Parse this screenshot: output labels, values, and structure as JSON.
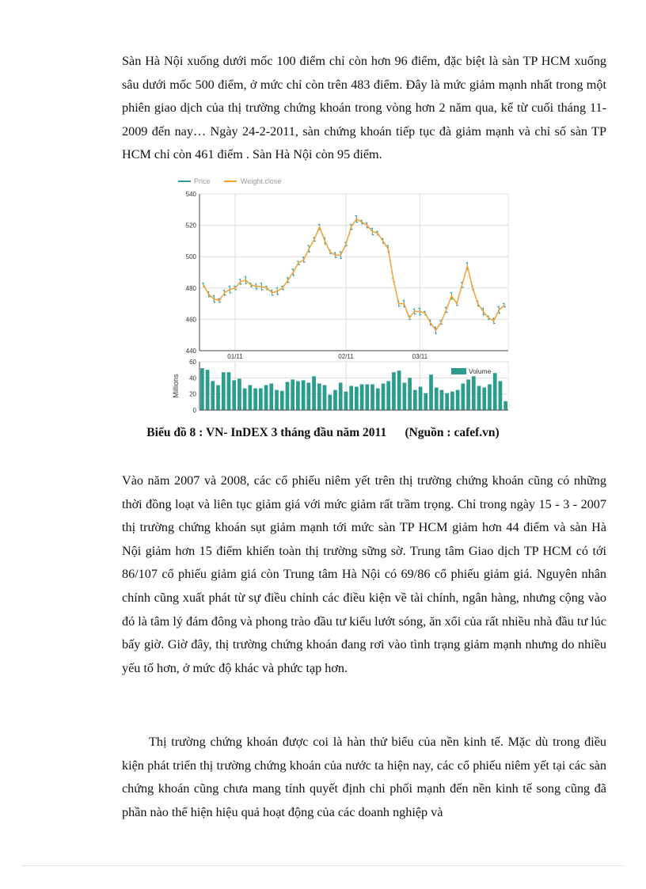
{
  "paragraphs": [
    "Sàn Hà Nội xuống dưới mốc 100 điểm chỉ còn hơn 96 điểm, đặc biệt là sàn TP HCM xuống sâu dưới mốc 500 điểm, ở mức chỉ còn trên 483 điểm. Đây là mức giảm mạnh nhất trong một phiên giao dịch của thị trường chứng khoán trong vòng hơn 2 năm qua, kể từ cuối tháng 11-2009 đến nay… Ngày 24-2-2011, sàn chứng khoán tiếp tục đà giảm mạnh và chỉ số sàn TP HCM chỉ còn 461 điểm . Sàn Hà Nội còn 95 điểm.",
    "Vào năm 2007 và 2008, các cổ phiếu niêm yết trên thị trường chứng khoán cũng có những thời đồng loạt và liên tục giảm giá với mức giảm rất trầm trọng. Chỉ trong ngày 15 - 3 - 2007 thị trường chứng khoán sụt giảm mạnh tới mức sàn TP HCM giảm hơn 44 điểm và sàn Hà Nội giảm hơn 15 điểm khiến toàn thị trường sững sờ. Trung tâm Giao dịch TP HCM có tới 86/107 cổ phiếu giảm giá còn Trung tâm Hà Nội có 69/86 cổ phiếu giảm giá. Nguyên nhân chính cũng xuất phát từ sự điều chỉnh các điều kiện về tài chính, ngân hàng, nhưng cộng vào đó là tâm lý đám đông và phong trào đầu tư kiểu lướt sóng, ăn xổi của rất nhiều nhà đầu tư lúc bấy giờ. Giờ đây, thị trường chứng khoán đang rơi vào tình trạng giảm mạnh nhưng do nhiều yếu tố hơn, ở mức độ khác và phức tạp hơn.",
    "Thị trường chứng khoán được coi là hàn thử biểu của nền kinh tế. Mặc dù trong điều kiện phát triển thị trường chứng khoán của nước ta hiện nay, các cổ phiếu niêm yết tại các sàn chứng khoán cũng chưa mang tính quyết định chi phối mạnh đến nền kinh tế song cũng đã phần nào thể hiện hiệu quả hoạt động của các doanh nghiệp và"
  ],
  "caption": "Biểu đồ 8 : VN- InDEX 3 tháng đầu năm 2011      (Nguồn : cafef.vn)",
  "chart_data": {
    "type": "line",
    "legend": [
      "Price",
      "Weight.close"
    ],
    "colors": {
      "price": "#2a9d9a",
      "weight_close": "#f5a030",
      "volume": "#2a9d8f"
    },
    "x_tick_labels": [
      {
        "label": "01/11",
        "index": 6
      },
      {
        "label": "02/11",
        "index": 27
      },
      {
        "label": "03/11",
        "index": 41
      }
    ],
    "price_ylim": [
      440,
      540
    ],
    "price_yticks": [
      "540",
      "520",
      "500",
      "480",
      "460",
      "440"
    ],
    "weight_close": [
      482,
      476,
      473,
      472,
      477,
      479,
      480,
      484,
      485,
      482,
      481,
      481,
      480,
      477,
      478,
      480,
      485,
      490,
      496,
      498,
      505,
      511,
      519,
      510,
      503,
      501,
      501,
      508,
      519,
      524,
      522,
      520,
      516,
      515,
      510,
      505,
      485,
      470,
      470,
      461,
      465,
      465,
      464,
      458,
      453,
      458,
      466,
      475,
      470,
      482,
      494,
      480,
      470,
      465,
      461,
      459,
      466,
      469
    ],
    "volume": {
      "name": "Volume",
      "ylabel": "Millions",
      "ylim": [
        0,
        60
      ],
      "yticks": [
        "60",
        "40",
        "20",
        "0"
      ],
      "values": [
        52,
        50,
        36,
        31,
        47,
        47,
        37,
        39,
        27,
        31,
        27,
        27,
        31,
        33,
        25,
        24,
        35,
        38,
        36,
        37,
        34,
        42,
        33,
        31,
        19,
        25,
        34,
        23,
        30,
        29,
        32,
        32,
        32,
        27,
        33,
        36,
        47,
        49,
        34,
        40,
        25,
        29,
        21,
        44,
        28,
        25,
        21,
        23,
        25,
        33,
        38,
        42,
        30,
        28,
        32,
        46,
        36,
        11
      ]
    },
    "grid": true
  }
}
